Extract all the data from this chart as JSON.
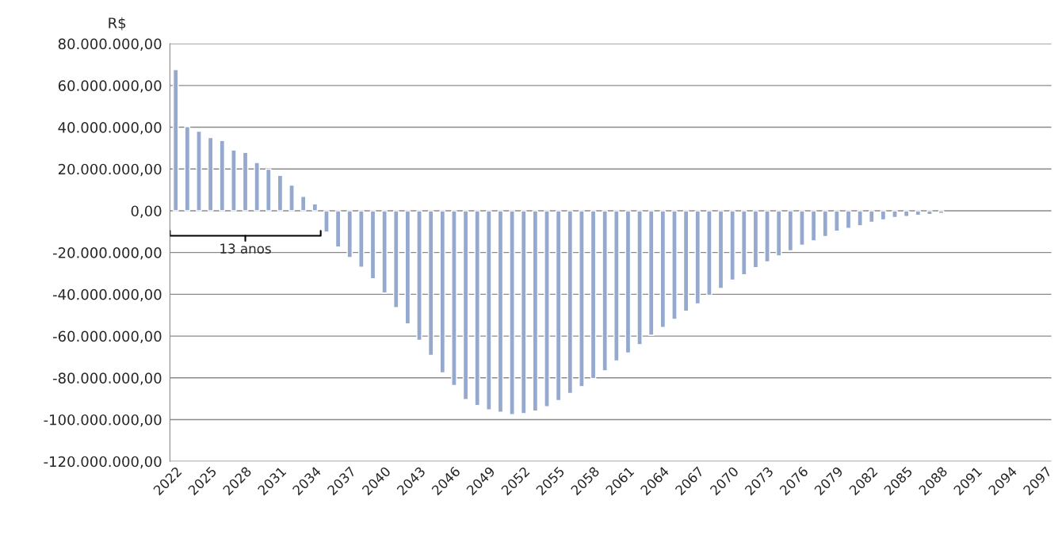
{
  "chart_data": {
    "type": "bar",
    "ylabel": "R$",
    "categories": [
      "2022",
      null,
      null,
      "2025",
      null,
      null,
      "2028",
      null,
      null,
      "2031",
      null,
      null,
      "2034",
      null,
      null,
      "2037",
      null,
      null,
      "2040",
      null,
      null,
      "2043",
      null,
      null,
      "2046",
      null,
      null,
      "2049",
      null,
      null,
      "2052",
      null,
      null,
      "2055",
      null,
      null,
      "2058",
      null,
      null,
      "2061",
      null,
      null,
      "2064",
      null,
      null,
      "2067",
      null,
      null,
      "2070",
      null,
      null,
      "2073",
      null,
      null,
      "2076",
      null,
      null,
      "2079",
      null,
      null,
      "2082",
      null,
      null,
      "2085",
      null,
      null,
      "2088",
      null,
      null,
      "2091",
      null,
      null,
      "2094",
      null,
      null,
      "2097"
    ],
    "values": [
      67600000,
      40300000,
      38100000,
      35100000,
      33600000,
      29100000,
      27900000,
      23100000,
      19900000,
      16900000,
      12300000,
      6900000,
      3300000,
      -10200000,
      -17400000,
      -22400000,
      -27000000,
      -32500000,
      -39400000,
      -46400000,
      -54200000,
      -62000000,
      -69200000,
      -77600000,
      -83700000,
      -90400000,
      -93200000,
      -95300000,
      -96500000,
      -97600000,
      -97100000,
      -95900000,
      -93800000,
      -90900000,
      -87500000,
      -84200000,
      -80300000,
      -76600000,
      -71900000,
      -68100000,
      -64100000,
      -59600000,
      -55900000,
      -52000000,
      -48100000,
      -44600000,
      -40500000,
      -37200000,
      -33200000,
      -30600000,
      -27200000,
      -24500000,
      -21600000,
      -19200000,
      -16500000,
      -14400000,
      -12300000,
      -9800000,
      -8400000,
      -7200000,
      -5500000,
      -4400000,
      -3200000,
      -2700000,
      -2200000,
      -1800000,
      -1200000,
      null,
      null,
      null,
      null,
      null,
      null,
      null,
      null,
      null
    ],
    "color": "#95a9cf",
    "ylim": [
      -120000000,
      80000000
    ],
    "yticks": [
      {
        "value": -120000000,
        "label": "-120.000.000,00"
      },
      {
        "value": -100000000,
        "label": "-100.000.000,00"
      },
      {
        "value": -80000000,
        "label": "-80.000.000,00"
      },
      {
        "value": -60000000,
        "label": "-60.000.000,00"
      },
      {
        "value": -40000000,
        "label": "-40.000.000,00"
      },
      {
        "value": -20000000,
        "label": "-20.000.000,00"
      },
      {
        "value": 0,
        "label": "0,00"
      },
      {
        "value": 20000000,
        "label": "20.000.000,00"
      },
      {
        "value": 40000000,
        "label": "40.000.000,00"
      },
      {
        "value": 60000000,
        "label": "60.000.000,00"
      },
      {
        "value": 80000000,
        "label": "80.000.000,00"
      }
    ],
    "grid": "y",
    "annotations": [
      "13 anos"
    ]
  }
}
